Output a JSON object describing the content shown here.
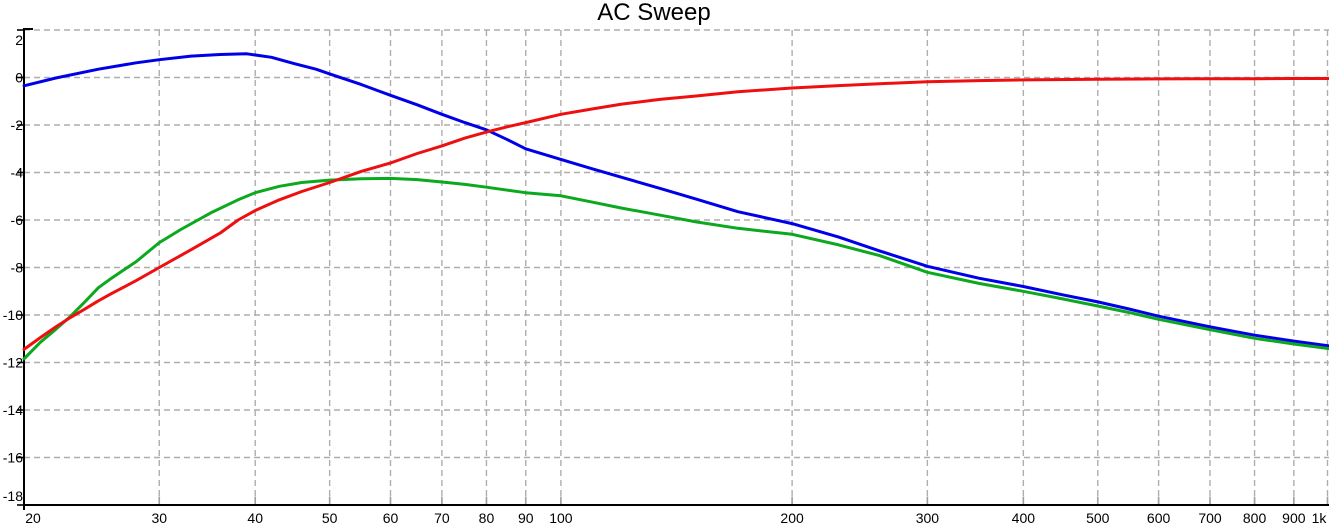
{
  "title": "AC Sweep",
  "colors": {
    "background": "#ffffff",
    "grid": "#aeaeae",
    "axis": "#000000",
    "tick_label": "#000000",
    "x_tick_mark": "#9f9f9f",
    "series_blue": "#0000e8",
    "series_red": "#ee1010",
    "series_green": "#0ca81e"
  },
  "chart_data": {
    "type": "line",
    "title": "AC Sweep",
    "xlabel": "",
    "ylabel": "",
    "x_scale": "log",
    "xlim": [
      20,
      1000
    ],
    "ylim": [
      -18,
      2
    ],
    "grid": "dashed",
    "legend": "none",
    "x_ticks": [
      {
        "value": 20,
        "label": "20"
      },
      {
        "value": 30,
        "label": "30"
      },
      {
        "value": 40,
        "label": "40"
      },
      {
        "value": 50,
        "label": "50"
      },
      {
        "value": 60,
        "label": "60"
      },
      {
        "value": 70,
        "label": "70"
      },
      {
        "value": 80,
        "label": "80"
      },
      {
        "value": 90,
        "label": "90"
      },
      {
        "value": 100,
        "label": "100"
      },
      {
        "value": 200,
        "label": "200"
      },
      {
        "value": 300,
        "label": "300"
      },
      {
        "value": 400,
        "label": "400"
      },
      {
        "value": 500,
        "label": "500"
      },
      {
        "value": 600,
        "label": "600"
      },
      {
        "value": 700,
        "label": "700"
      },
      {
        "value": 800,
        "label": "800"
      },
      {
        "value": 900,
        "label": "900"
      },
      {
        "value": 1000,
        "label": "1k"
      }
    ],
    "y_ticks": [
      {
        "value": 2,
        "label": "2"
      },
      {
        "value": 0,
        "label": "0"
      },
      {
        "value": -2,
        "label": "-2"
      },
      {
        "value": -4,
        "label": "-4"
      },
      {
        "value": -6,
        "label": "-6"
      },
      {
        "value": -8,
        "label": "-8"
      },
      {
        "value": -10,
        "label": "-10"
      },
      {
        "value": -12,
        "label": "-12"
      },
      {
        "value": -14,
        "label": "-14"
      },
      {
        "value": -16,
        "label": "-16"
      },
      {
        "value": -18,
        "label": "-18"
      }
    ],
    "series": [
      {
        "name": "blue-trace",
        "color": "#0000e8",
        "points": [
          [
            20,
            -0.35
          ],
          [
            22,
            -0.02
          ],
          [
            25,
            0.35
          ],
          [
            28,
            0.62
          ],
          [
            30,
            0.75
          ],
          [
            33,
            0.9
          ],
          [
            36,
            0.97
          ],
          [
            39,
            1.0
          ],
          [
            42,
            0.85
          ],
          [
            45,
            0.58
          ],
          [
            48,
            0.35
          ],
          [
            50,
            0.15
          ],
          [
            55,
            -0.3
          ],
          [
            60,
            -0.75
          ],
          [
            65,
            -1.15
          ],
          [
            70,
            -1.55
          ],
          [
            75,
            -1.9
          ],
          [
            80,
            -2.2
          ],
          [
            85,
            -2.6
          ],
          [
            90,
            -3.0
          ],
          [
            100,
            -3.45
          ],
          [
            110,
            -3.85
          ],
          [
            120,
            -4.2
          ],
          [
            135,
            -4.68
          ],
          [
            150,
            -5.12
          ],
          [
            170,
            -5.65
          ],
          [
            200,
            -6.15
          ],
          [
            230,
            -6.72
          ],
          [
            260,
            -7.3
          ],
          [
            300,
            -7.95
          ],
          [
            350,
            -8.45
          ],
          [
            400,
            -8.8
          ],
          [
            450,
            -9.15
          ],
          [
            500,
            -9.45
          ],
          [
            550,
            -9.75
          ],
          [
            600,
            -10.05
          ],
          [
            700,
            -10.5
          ],
          [
            800,
            -10.85
          ],
          [
            900,
            -11.1
          ],
          [
            1000,
            -11.3
          ]
        ]
      },
      {
        "name": "green-trace",
        "color": "#0ca81e",
        "points": [
          [
            20,
            -11.85
          ],
          [
            21,
            -11.15
          ],
          [
            22,
            -10.6
          ],
          [
            23,
            -10.05
          ],
          [
            24,
            -9.45
          ],
          [
            25,
            -8.85
          ],
          [
            26,
            -8.45
          ],
          [
            28,
            -7.75
          ],
          [
            30,
            -6.95
          ],
          [
            32,
            -6.4
          ],
          [
            35,
            -5.7
          ],
          [
            38,
            -5.15
          ],
          [
            40,
            -4.85
          ],
          [
            43,
            -4.58
          ],
          [
            46,
            -4.42
          ],
          [
            50,
            -4.32
          ],
          [
            55,
            -4.26
          ],
          [
            60,
            -4.25
          ],
          [
            65,
            -4.3
          ],
          [
            70,
            -4.4
          ],
          [
            75,
            -4.5
          ],
          [
            80,
            -4.62
          ],
          [
            90,
            -4.85
          ],
          [
            100,
            -4.98
          ],
          [
            110,
            -5.25
          ],
          [
            120,
            -5.5
          ],
          [
            135,
            -5.8
          ],
          [
            150,
            -6.08
          ],
          [
            170,
            -6.35
          ],
          [
            200,
            -6.6
          ],
          [
            230,
            -7.05
          ],
          [
            260,
            -7.5
          ],
          [
            300,
            -8.2
          ],
          [
            350,
            -8.67
          ],
          [
            400,
            -9.0
          ],
          [
            450,
            -9.32
          ],
          [
            500,
            -9.62
          ],
          [
            550,
            -9.9
          ],
          [
            600,
            -10.18
          ],
          [
            700,
            -10.62
          ],
          [
            800,
            -10.98
          ],
          [
            900,
            -11.22
          ],
          [
            1000,
            -11.42
          ]
        ]
      },
      {
        "name": "red-trace",
        "color": "#ee1010",
        "points": [
          [
            20,
            -11.45
          ],
          [
            21,
            -10.95
          ],
          [
            22,
            -10.5
          ],
          [
            23,
            -10.1
          ],
          [
            24,
            -9.75
          ],
          [
            25,
            -9.4
          ],
          [
            26,
            -9.1
          ],
          [
            28,
            -8.55
          ],
          [
            30,
            -8.0
          ],
          [
            33,
            -7.25
          ],
          [
            36,
            -6.55
          ],
          [
            38,
            -6.0
          ],
          [
            40,
            -5.6
          ],
          [
            43,
            -5.15
          ],
          [
            46,
            -4.8
          ],
          [
            50,
            -4.42
          ],
          [
            55,
            -3.95
          ],
          [
            60,
            -3.6
          ],
          [
            65,
            -3.2
          ],
          [
            70,
            -2.88
          ],
          [
            75,
            -2.55
          ],
          [
            80,
            -2.3
          ],
          [
            85,
            -2.08
          ],
          [
            90,
            -1.9
          ],
          [
            100,
            -1.55
          ],
          [
            110,
            -1.32
          ],
          [
            120,
            -1.12
          ],
          [
            135,
            -0.92
          ],
          [
            150,
            -0.78
          ],
          [
            170,
            -0.6
          ],
          [
            200,
            -0.44
          ],
          [
            230,
            -0.34
          ],
          [
            260,
            -0.26
          ],
          [
            300,
            -0.18
          ],
          [
            350,
            -0.13
          ],
          [
            400,
            -0.1
          ],
          [
            500,
            -0.07
          ],
          [
            600,
            -0.06
          ],
          [
            700,
            -0.05
          ],
          [
            800,
            -0.05
          ],
          [
            900,
            -0.04
          ],
          [
            1000,
            -0.04
          ]
        ]
      }
    ]
  }
}
